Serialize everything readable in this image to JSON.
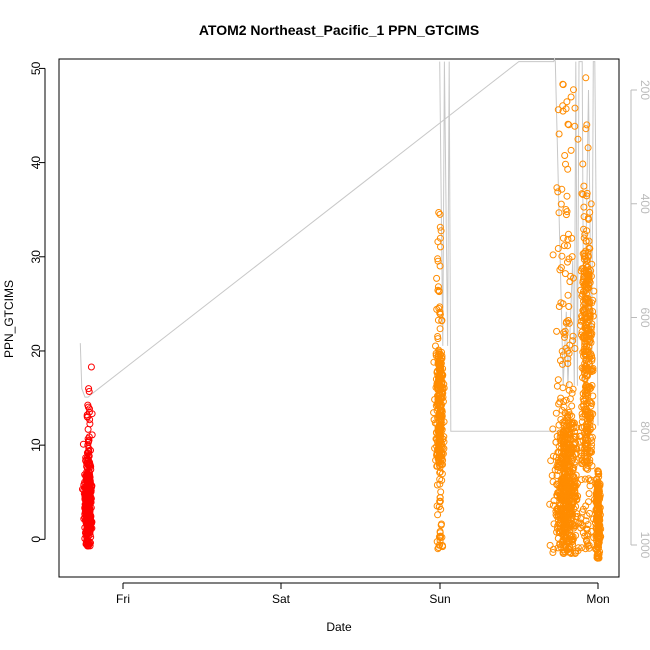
{
  "chart_data": {
    "type": "scatter",
    "title": "ATOM2 Northeast_Pacific_1 PPN_GTCIMS",
    "xlabel": "Date",
    "ylabel": "PPN_GTCIMS",
    "x_ticks": [
      "Fri",
      "Sat",
      "Sun",
      "Mon"
    ],
    "ylim": [
      -4,
      51
    ],
    "y_ticks": [
      0,
      10,
      20,
      30,
      40,
      50
    ],
    "secondary_axis": {
      "description": "altitude/pressure trace, reversed axis",
      "ticks": [
        200,
        400,
        600,
        800,
        1000
      ],
      "color": "#bbbbbb"
    },
    "colors": {
      "segment_1": "#ff0000",
      "segment_2": "#ff8c00",
      "trace": "#c8c8c8"
    },
    "series": [
      {
        "color": "#ff0000",
        "clusters": [
          {
            "day_position": -0.22,
            "spread": 0.03,
            "y_range": [
              -0.7,
              14.3
            ],
            "typical": [
              1,
              7
            ],
            "count": 420,
            "outliers": [
              15.7,
              16.0,
              18.3
            ]
          }
        ]
      },
      {
        "color": "#ff8c00",
        "clusters": [
          {
            "day_position": 2.0,
            "spread": 0.035,
            "y_range": [
              -1.0,
              34.7
            ],
            "typical": [
              8,
              19
            ],
            "count": 320,
            "outliers": [
              27.7,
              31.6,
              34.7
            ]
          },
          {
            "day_position": 2.8,
            "spread": 0.1,
            "y_range": [
              -1.5,
              49.0
            ],
            "typical": [
              0,
              12
            ],
            "count": 650,
            "outliers": []
          },
          {
            "day_position": 2.93,
            "spread": 0.05,
            "y_range": [
              -1.0,
              44.0
            ],
            "typical": [
              8,
              30
            ],
            "count": 400,
            "outliers": [
              43.6,
              44.0,
              49.0
            ]
          },
          {
            "day_position": 3.0,
            "spread": 0.02,
            "y_range": [
              -2.0,
              8.0
            ],
            "typical": [
              0,
              6
            ],
            "count": 180,
            "outliers": []
          }
        ]
      }
    ],
    "trace": [
      {
        "x": -0.27,
        "alt": 645
      },
      {
        "x": -0.26,
        "alt": 725
      },
      {
        "x": -0.24,
        "alt": 740
      },
      {
        "x": -0.22,
        "alt": 740
      },
      {
        "x": -0.2,
        "alt": 735
      },
      {
        "x": 2.5,
        "alt": 150
      },
      {
        "x": 2.72,
        "alt": 150
      },
      {
        "x": 2.725,
        "alt": 100
      },
      {
        "x": 2.73,
        "alt": 150
      },
      {
        "x": 2.77,
        "alt": 600
      },
      {
        "x": 2.78,
        "alt": 720
      },
      {
        "x": 2.8,
        "alt": 590
      },
      {
        "x": 2.81,
        "alt": 720
      },
      {
        "x": 2.84,
        "alt": 500
      },
      {
        "x": 2.85,
        "alt": 720
      },
      {
        "x": 2.86,
        "alt": 150
      },
      {
        "x": 2.87,
        "alt": 720
      },
      {
        "x": 2.88,
        "alt": 150
      },
      {
        "x": 2.9,
        "alt": 150
      },
      {
        "x": 2.91,
        "alt": 720
      },
      {
        "x": 2.94,
        "alt": 200
      },
      {
        "x": 2.96,
        "alt": 700
      },
      {
        "x": 2.97,
        "alt": 150
      },
      {
        "x": 2.98,
        "alt": 150
      },
      {
        "x": 3.0,
        "alt": 790
      }
    ],
    "trace_sun": [
      {
        "x": 2.0,
        "alt": 150
      },
      {
        "x": 2.02,
        "alt": 650
      },
      {
        "x": 2.03,
        "alt": 150
      },
      {
        "x": 2.05,
        "alt": 650
      },
      {
        "x": 2.06,
        "alt": 150
      },
      {
        "x": 2.07,
        "alt": 800
      },
      {
        "x": 2.8,
        "alt": 800
      }
    ]
  }
}
